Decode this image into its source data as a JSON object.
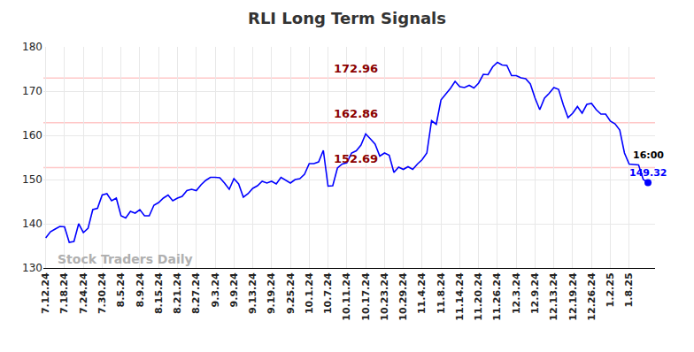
{
  "chart_data": {
    "type": "line",
    "title": "RLI Long Term Signals",
    "color": "#0000ff",
    "categories": [
      "7.12.24",
      null,
      null,
      null,
      "7.18.24",
      null,
      null,
      null,
      "7.24.24",
      null,
      null,
      null,
      "7.30.24",
      null,
      null,
      null,
      "8.5.24",
      null,
      null,
      null,
      "8.9.24",
      null,
      null,
      null,
      "8.15.24",
      null,
      null,
      null,
      "8.21.24",
      null,
      null,
      null,
      "8.27.24",
      null,
      null,
      null,
      "9.3.24",
      null,
      null,
      null,
      "9.9.24",
      null,
      null,
      null,
      "9.13.24",
      null,
      null,
      null,
      "9.19.24",
      null,
      null,
      null,
      "9.25.24",
      null,
      null,
      null,
      "10.1.24",
      null,
      null,
      null,
      "10.7.24",
      null,
      null,
      null,
      "10.11.24",
      null,
      null,
      null,
      "10.17.24",
      null,
      null,
      null,
      "10.23.24",
      null,
      null,
      null,
      "10.29.24",
      null,
      null,
      null,
      "11.4.24",
      null,
      null,
      null,
      "11.8.24",
      null,
      null,
      null,
      "11.14.24",
      null,
      null,
      null,
      "11.20.24",
      null,
      null,
      null,
      "11.26.24",
      null,
      null,
      null,
      "12.3.24",
      null,
      null,
      null,
      "12.9.24",
      null,
      null,
      null,
      "12.13.24",
      null,
      null,
      null,
      "12.19.24",
      null,
      null,
      null,
      "12.26.24",
      null,
      null,
      null,
      "1.2.25",
      null,
      null,
      null,
      "1.8.25",
      null,
      null,
      null,
      null
    ],
    "values": [
      136.8,
      138.2,
      138.8,
      139.4,
      139.3,
      135.8,
      136.0,
      140.0,
      138.0,
      139.0,
      143.2,
      143.5,
      146.5,
      146.8,
      145.2,
      145.8,
      141.8,
      141.3,
      142.8,
      142.4,
      143.2,
      141.8,
      141.8,
      144.2,
      144.8,
      145.8,
      146.5,
      145.2,
      145.8,
      146.2,
      147.5,
      147.8,
      147.5,
      148.8,
      149.8,
      150.5,
      150.5,
      150.4,
      149.2,
      147.8,
      150.2,
      149.0,
      146.0,
      146.8,
      148.0,
      148.6,
      149.6,
      149.2,
      149.6,
      149.0,
      150.5,
      149.8,
      149.2,
      150.0,
      150.2,
      151.2,
      153.6,
      153.6,
      154.0,
      156.6,
      148.5,
      148.6,
      152.6,
      153.5,
      153.8,
      156.0,
      156.5,
      157.8,
      160.3,
      159.2,
      158.0,
      155.3,
      156.0,
      155.5,
      151.6,
      152.8,
      152.3,
      152.9,
      152.3,
      153.5,
      154.5,
      156.0,
      163.3,
      162.5,
      168.0,
      169.3,
      170.6,
      172.2,
      171.0,
      170.8,
      171.3,
      170.7,
      171.8,
      173.8,
      173.7,
      175.5,
      176.5,
      175.9,
      175.8,
      173.5,
      173.5,
      173.0,
      172.8,
      171.6,
      168.4,
      165.8,
      168.4,
      169.5,
      170.8,
      170.4,
      166.9,
      164.0,
      165.0,
      166.5,
      165.0,
      167.0,
      167.2,
      165.8,
      164.8,
      164.8,
      163.2,
      162.6,
      161.2,
      156.0,
      153.5,
      153.4,
      153.3,
      150.0,
      149.32
    ],
    "ylim": [
      130,
      180
    ],
    "yticks": [
      130,
      140,
      150,
      160,
      170,
      180
    ],
    "grid": true,
    "levels": [
      152.69,
      162.86,
      172.96
    ],
    "last_time_label": "16:00",
    "watermark": "Stock Traders Daily"
  }
}
